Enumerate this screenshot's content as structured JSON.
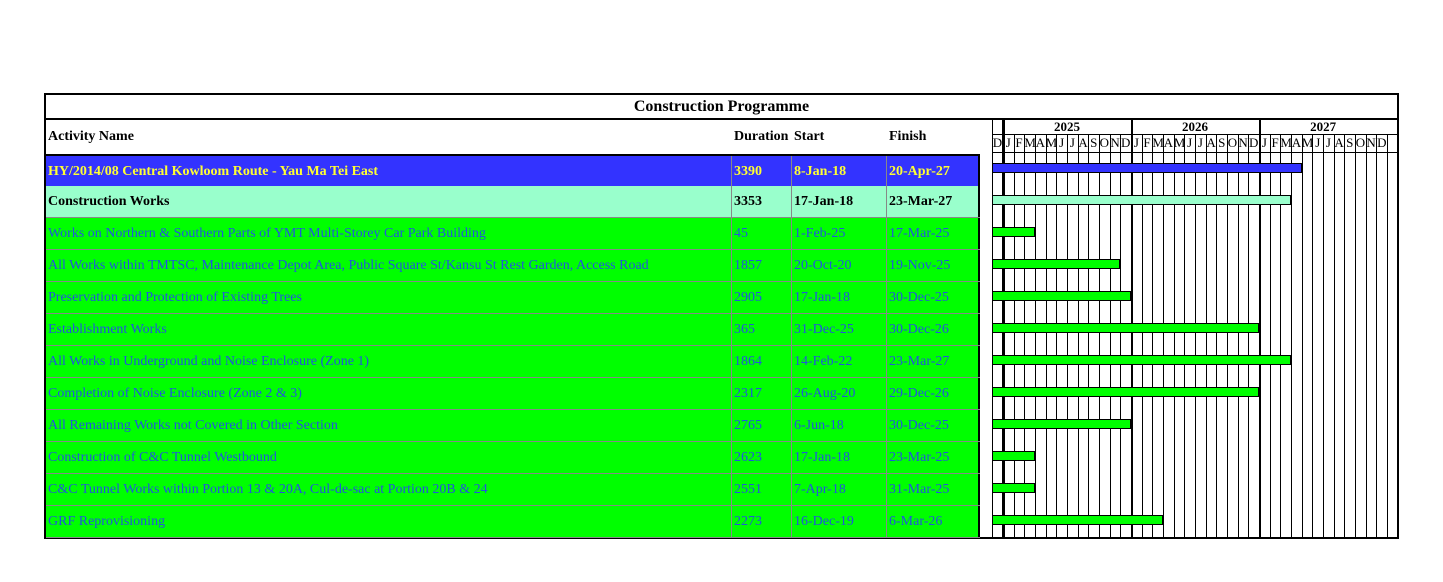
{
  "title": "Construction Programme",
  "headers": {
    "name": "Activity Name",
    "duration": "Duration",
    "start": "Start",
    "finish": "Finish"
  },
  "gantt": {
    "years": [
      "2025",
      "2026",
      "2027"
    ],
    "months": [
      "D",
      "J",
      "F",
      "M",
      "A",
      "M",
      "J",
      "J",
      "A",
      "S",
      "O",
      "N",
      "D",
      "J",
      "F",
      "M",
      "A",
      "M",
      "J",
      "J",
      "A",
      "S",
      "O",
      "N",
      "D",
      "J",
      "F",
      "M",
      "A",
      "M",
      "J",
      "J",
      "A",
      "S",
      "O",
      "N",
      "D"
    ]
  },
  "colors": {
    "project_bg": "#3333ff",
    "project_text": "#ffff33",
    "summary_bg": "#99ffcc",
    "summary_text": "#000000",
    "task_bg": "#00ff00",
    "task_text": "#2255dd"
  },
  "rows": [
    {
      "type": "project",
      "name": "HY/2014/08 Central Kowloom Route - Yau Ma Tei East",
      "duration": "3390",
      "start": "8-Jan-18",
      "finish": "20-Apr-27",
      "finish_month": "2027-04"
    },
    {
      "type": "summary",
      "name": "Construction Works",
      "duration": "3353",
      "start": "17-Jan-18",
      "finish": "23-Mar-27",
      "finish_month": "2027-03"
    },
    {
      "type": "task",
      "name": "Works on Northern & Southern Parts of YMT Multi-Storey Car Park Building",
      "duration": "45",
      "start": "1-Feb-25",
      "finish": "17-Mar-25",
      "finish_month": "2025-03"
    },
    {
      "type": "task",
      "name": "All Works within TMTSC, Maintenance Depot Area, Public Square St/Kansu St Rest Garden, Access Road",
      "duration": "1857",
      "start": "20-Oct-20",
      "finish": "19-Nov-25",
      "finish_month": "2025-11"
    },
    {
      "type": "task",
      "name": "Preservation and Protection of Existing Trees",
      "duration": "2905",
      "start": "17-Jan-18",
      "finish": "30-Dec-25",
      "finish_month": "2025-12"
    },
    {
      "type": "task",
      "name": "Establishment Works",
      "duration": "365",
      "start": "31-Dec-25",
      "finish": "30-Dec-26",
      "finish_month": "2026-12"
    },
    {
      "type": "task",
      "name": "All Works in Underground and Noise Enclosure (Zone 1)",
      "duration": "1864",
      "start": "14-Feb-22",
      "finish": "23-Mar-27",
      "finish_month": "2027-03"
    },
    {
      "type": "task",
      "name": "Completion of Noise Enclosure (Zone 2 & 3)",
      "duration": "2317",
      "start": "26-Aug-20",
      "finish": "29-Dec-26",
      "finish_month": "2026-12"
    },
    {
      "type": "task",
      "name": "All Remaining Works not Covered in Other Section",
      "duration": "2765",
      "start": "6-Jun-18",
      "finish": "30-Dec-25",
      "finish_month": "2025-12"
    },
    {
      "type": "task",
      "name": "Construction of  C&C Tunnel Westbound",
      "duration": "2623",
      "start": "17-Jan-18",
      "finish": "23-Mar-25",
      "finish_month": "2025-03"
    },
    {
      "type": "task",
      "name": "C&C Tunnel Works within Portion 13 & 20A, Cul-de-sac at Portion 20B & 24",
      "duration": "2551",
      "start": "7-Apr-18",
      "finish": "31-Mar-25",
      "finish_month": "2025-03"
    },
    {
      "type": "task",
      "name": "GRF Reprovisioning",
      "duration": "2273",
      "start": "16-Dec-19",
      "finish": "6-Mar-26",
      "finish_month": "2026-03"
    }
  ]
}
